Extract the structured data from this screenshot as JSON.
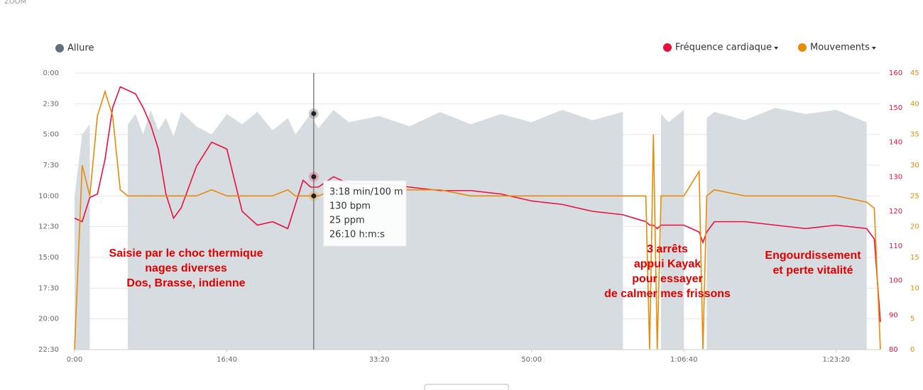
{
  "header": {
    "zoom": "ZOOM"
  },
  "chart_data": {
    "type": "line",
    "x": [
      0,
      50,
      100,
      150,
      200,
      250,
      300,
      350,
      400,
      450,
      500,
      550,
      600,
      650,
      700,
      800,
      900,
      1000,
      1100,
      1200,
      1300,
      1400,
      1450,
      1500,
      1550,
      1600,
      1700,
      1800,
      2000,
      2200,
      2400,
      2600,
      2800,
      3000,
      3200,
      3400,
      3600,
      3750,
      3775,
      3800,
      3825,
      3850,
      3900,
      4000,
      4100,
      4125,
      4150,
      4200,
      4400,
      4600,
      4800,
      5000,
      5200,
      5250,
      5290
    ],
    "xlim": [
      0,
      5290
    ],
    "xticks": [
      {
        "value": 0,
        "label": "0:00"
      },
      {
        "value": 1000,
        "label": "16:40"
      },
      {
        "value": 2000,
        "label": "33:20"
      },
      {
        "value": 3000,
        "label": "50:00"
      },
      {
        "value": 4000,
        "label": "1:06:40"
      },
      {
        "value": 5000,
        "label": "1:23:20"
      }
    ],
    "ylim": [
      0,
      1350
    ],
    "y_inverted": true,
    "yticks": [
      {
        "value": 0,
        "label": "0:00"
      },
      {
        "value": 150,
        "label": "2:30"
      },
      {
        "value": 300,
        "label": "5:00"
      },
      {
        "value": 450,
        "label": "7:30"
      },
      {
        "value": 600,
        "label": "10:00"
      },
      {
        "value": 750,
        "label": "12:30"
      },
      {
        "value": 900,
        "label": "15:00"
      },
      {
        "value": 1050,
        "label": "17:30"
      },
      {
        "value": 1200,
        "label": "20:00"
      },
      {
        "value": 1350,
        "label": "22:30"
      }
    ],
    "y2lim": [
      80,
      160
    ],
    "y2ticks": [
      80,
      90,
      100,
      110,
      120,
      130,
      140,
      150,
      160
    ],
    "y3lim": [
      0,
      45
    ],
    "y3ticks": [
      0,
      5,
      10,
      15,
      20,
      25,
      30,
      35,
      40,
      45
    ],
    "grid": true,
    "series": [
      {
        "name": "Allure",
        "color": "#5f7180",
        "fill": "#d7dce0",
        "kind": "area",
        "axis": "y",
        "values": [
          600,
          300,
          250,
          null,
          null,
          null,
          null,
          250,
          200,
          300,
          180,
          280,
          220,
          310,
          190,
          260,
          300,
          200,
          250,
          190,
          280,
          220,
          300,
          250,
          200,
          270,
          180,
          240,
          210,
          260,
          190,
          250,
          200,
          240,
          180,
          230,
          190,
          null,
          null,
          null,
          null,
          200,
          240,
          180,
          null,
          null,
          220,
          190,
          230,
          170,
          200,
          180,
          240,
          null,
          null
        ]
      },
      {
        "name": "Fréquence cardiaque",
        "color": "#e8113e",
        "kind": "line",
        "axis": "y2",
        "values": [
          118,
          117,
          124,
          125,
          135,
          150,
          156,
          155,
          154,
          150,
          145,
          138,
          125,
          118,
          121,
          133,
          140,
          138,
          120,
          116,
          117,
          115,
          122,
          129,
          127,
          127,
          130,
          128,
          128,
          127,
          126,
          126,
          125,
          123,
          122,
          120,
          119,
          117,
          116,
          116,
          115,
          116,
          116,
          116,
          114,
          111,
          114,
          117,
          117,
          116,
          115,
          116,
          115,
          112,
          88
        ]
      },
      {
        "name": "Mouvements",
        "color": "#e88a0a",
        "kind": "line",
        "axis": "y3",
        "values": [
          0,
          30,
          25,
          38,
          42,
          38,
          26,
          25,
          25,
          25,
          25,
          25,
          25,
          25,
          25,
          25,
          26,
          25,
          25,
          25,
          25,
          26,
          25,
          25,
          25,
          25,
          26,
          26,
          26,
          26,
          26,
          25,
          25,
          25,
          25,
          25,
          25,
          25,
          0,
          35,
          0,
          25,
          25,
          25,
          29,
          0,
          25,
          26,
          25,
          25,
          25,
          25,
          24,
          23,
          0
        ]
      }
    ],
    "tooltip": {
      "x": 1570,
      "pace": 198,
      "hr": 130,
      "movement": 25,
      "labels": [
        "3:18 min/100 m",
        "130 bpm",
        "25 ppm",
        "26:10 h:m:s"
      ]
    },
    "annotations": [
      {
        "lines": [
          "Saisie par le choc thermique",
          "nages diverses",
          "Dos, Brasse, indienne"
        ]
      },
      {
        "lines": [
          "3 arrêts",
          "appui Kayak",
          "pour essayer",
          "de calmer mes frissons"
        ]
      },
      {
        "lines": [
          "Engourdissement",
          "et perte vitalité"
        ]
      }
    ]
  }
}
